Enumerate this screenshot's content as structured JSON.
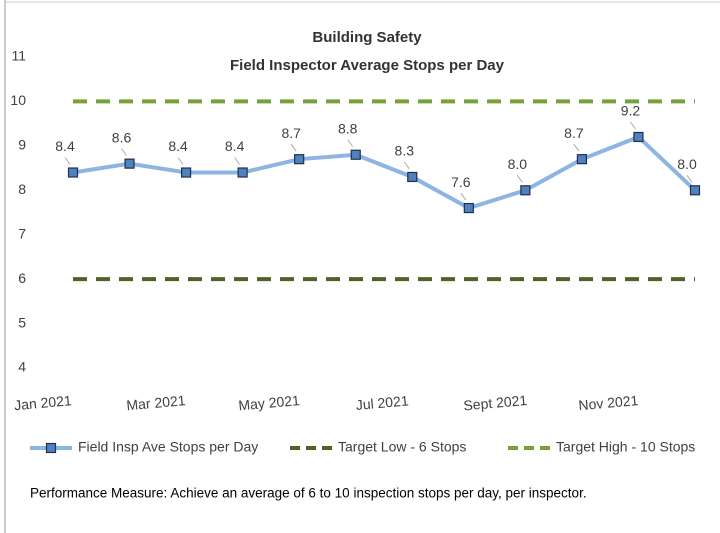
{
  "chart_data": {
    "type": "line",
    "title": "Building Safety",
    "subtitle": "Field Inspector Average Stops per Day",
    "categories": [
      "Jan 2021",
      null,
      "Mar 2021",
      null,
      "May 2021",
      null,
      "Jul 2021",
      null,
      "Sept 2021",
      null,
      "Nov 2021",
      null
    ],
    "series": [
      {
        "name": "Field Insp Ave Stops per Day",
        "color": "#8db4e2",
        "marker_color": "#4f81bd",
        "values": [
          8.4,
          8.6,
          8.4,
          8.4,
          8.7,
          8.8,
          8.3,
          7.6,
          8,
          8.7,
          9.2,
          8
        ],
        "value_labels": [
          "8.4",
          "8.6",
          "8.4",
          "8.4",
          "8.7",
          "8.8",
          "8.3",
          "7.6",
          "8.0",
          "8.7",
          "9.2",
          "8.0"
        ]
      },
      {
        "name": "Target Low - 6 Stops",
        "color": "#4f6228",
        "dashed": true,
        "values": [
          6,
          6,
          6,
          6,
          6,
          6,
          6,
          6,
          6,
          6,
          6,
          6
        ]
      },
      {
        "name": "Target High - 10 Stops",
        "color": "#77a03a",
        "dashed": true,
        "values": [
          10,
          10,
          10,
          10,
          10,
          10,
          10,
          10,
          10,
          10,
          10,
          10
        ]
      }
    ],
    "ylim": [
      4,
      11
    ],
    "yticks": [
      4,
      5,
      6,
      7,
      8,
      9,
      10,
      11
    ],
    "legend": "bottom",
    "footnote": "Performance Measure: Achieve an average of 6 to 10 inspection stops per day, per inspector."
  }
}
